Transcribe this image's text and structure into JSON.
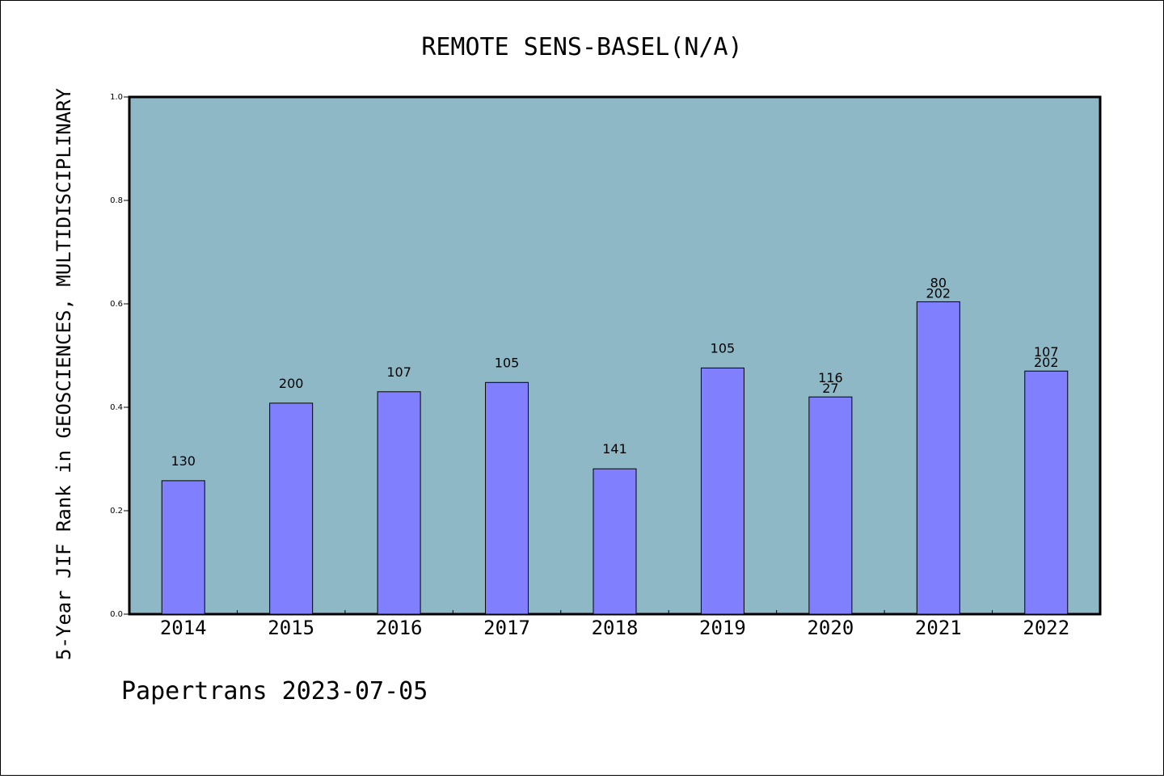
{
  "chart_data": {
    "type": "bar",
    "title": "REMOTE SENS-BASEL(N/A)",
    "xlabel": "",
    "ylabel": "5-Year JIF Rank in GEOSCIENCES, MULTIDISCIPLINARY",
    "ylim": [
      0,
      1.0
    ],
    "yticks": [
      "0.0",
      "0.2",
      "0.4",
      "0.6",
      "0.8",
      "1.0"
    ],
    "categories": [
      "2014",
      "2015",
      "2016",
      "2017",
      "2018",
      "2019",
      "2020",
      "2021",
      "2022"
    ],
    "values": [
      0.258,
      0.408,
      0.43,
      0.448,
      0.281,
      0.476,
      0.42,
      0.604,
      0.47
    ],
    "bar_labels": [
      [
        "130"
      ],
      [
        "200"
      ],
      [
        "107"
      ],
      [
        "105"
      ],
      [
        "141"
      ],
      [
        "105"
      ],
      [
        "116",
        "27"
      ],
      [
        "80",
        "202"
      ],
      [
        "107",
        "202"
      ]
    ],
    "grid": false,
    "colors": {
      "plot_background": "#8fb8c7",
      "bar": "#8080ff",
      "bar_edge": "#000000"
    }
  },
  "footer": "Papertrans 2023-07-05"
}
